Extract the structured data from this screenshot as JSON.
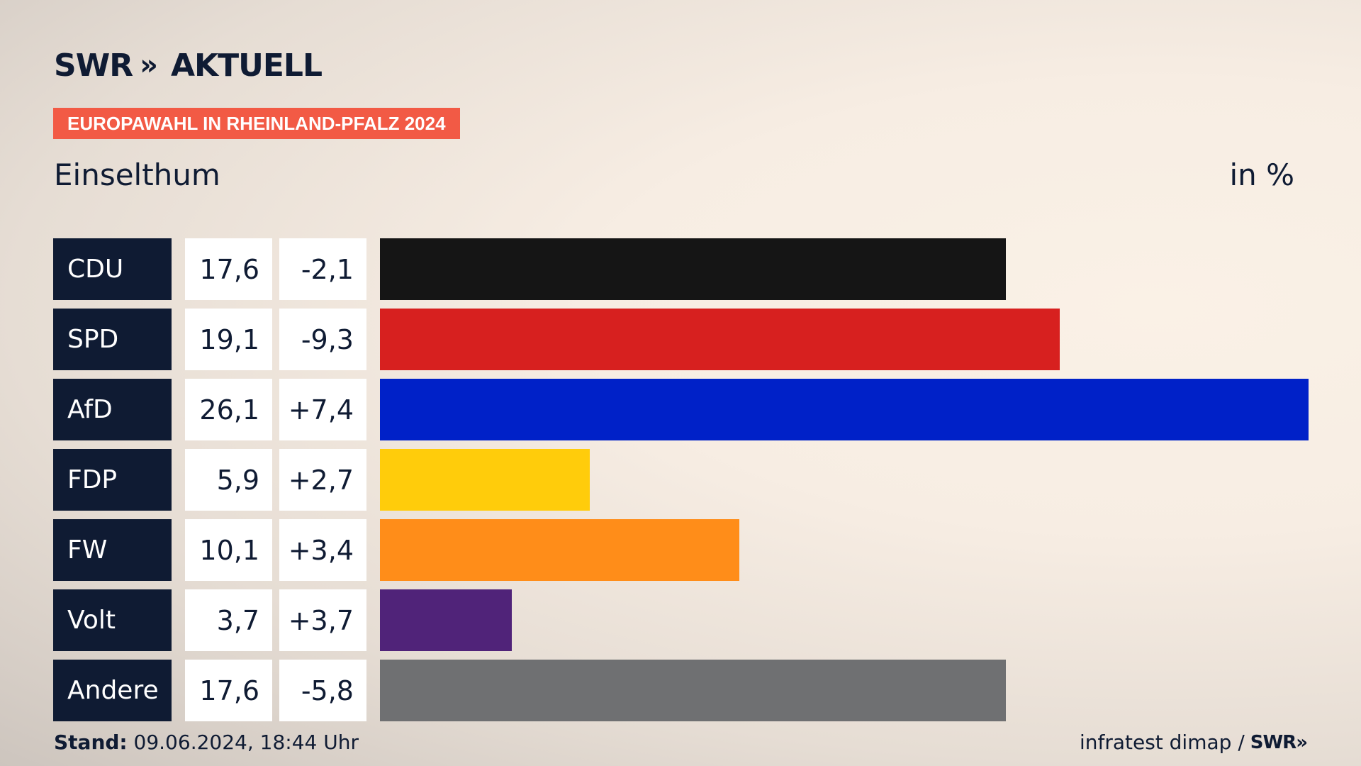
{
  "logo": {
    "brand": "SWR",
    "chevrons": "»",
    "product": "AKTUELL"
  },
  "badge": "EUROPAWAHL IN RHEINLAND-PFALZ 2024",
  "place": "Einselthum",
  "unit": "in %",
  "colors": {
    "navy": "#0f1b33",
    "badge": "#f25a45",
    "CDU": "#151515",
    "SPD": "#d7201f",
    "AfD": "#0021c8",
    "FDP": "#ffcc0b",
    "FW": "#ff8d19",
    "Volt": "#502379",
    "Andere": "#6f7072"
  },
  "chart_data": {
    "type": "bar",
    "orientation": "horizontal",
    "categories": [
      "CDU",
      "SPD",
      "AfD",
      "FDP",
      "FW",
      "Volt",
      "Andere"
    ],
    "values": [
      17.6,
      19.1,
      26.1,
      5.9,
      10.1,
      3.7,
      17.6
    ],
    "value_labels": [
      "17,6",
      "19,1",
      "26,1",
      "5,9",
      "10,1",
      "3,7",
      "17,6"
    ],
    "diff_labels": [
      "-2,1",
      "-9,3",
      "+7,4",
      "+2,7",
      "+3,4",
      "+3,7",
      "-5,8"
    ],
    "bar_colors": [
      "#151515",
      "#d7201f",
      "#0021c8",
      "#ffcc0b",
      "#ff8d19",
      "#502379",
      "#6f7072"
    ],
    "xlim": [
      0,
      26.1
    ],
    "grid": false,
    "title": "Einselthum",
    "unit": "in %"
  },
  "footer": {
    "stand_label": "Stand:",
    "stand_value": "09.06.2024, 18:44 Uhr",
    "source": "infratest dimap /",
    "source_brand": "SWR"
  }
}
